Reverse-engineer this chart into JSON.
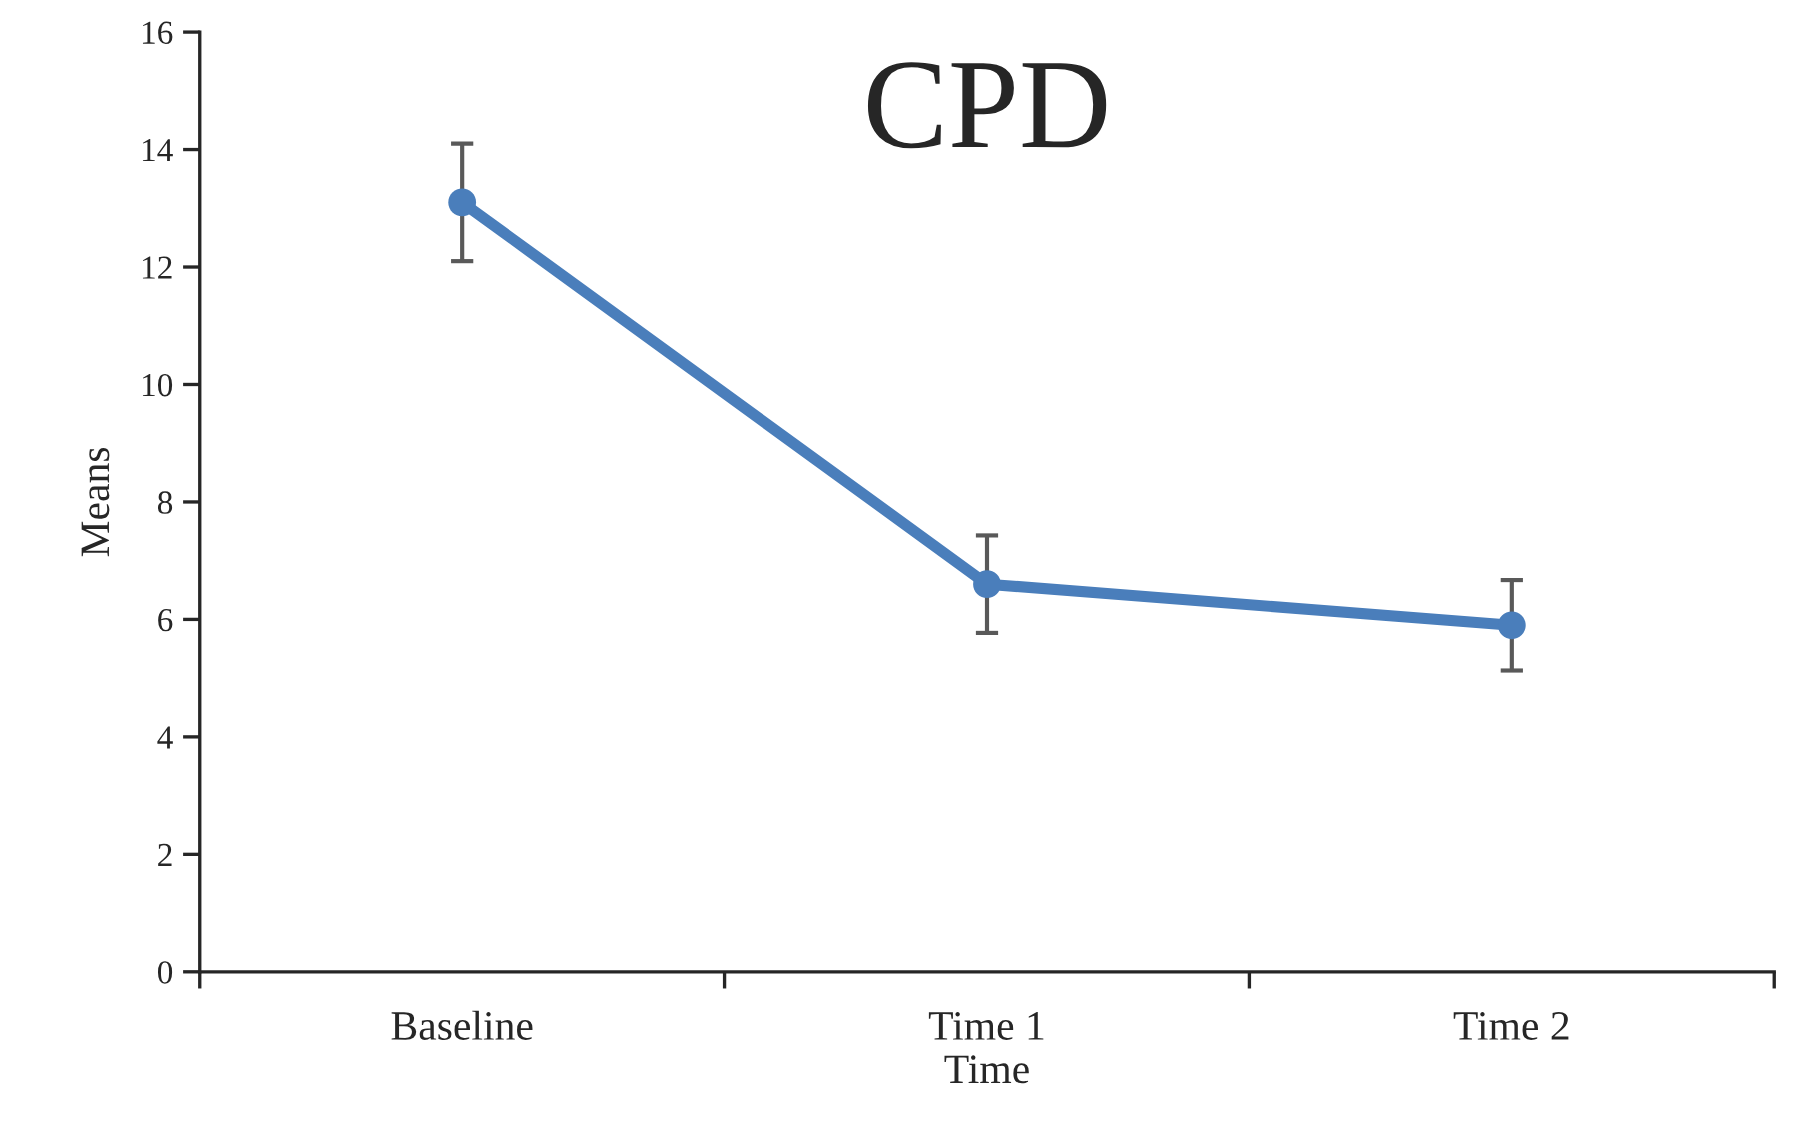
{
  "chart_data": {
    "type": "line",
    "title": "CPD",
    "xlabel": "Time",
    "ylabel": "Means",
    "categories": [
      "Baseline",
      "Time 1",
      "Time 2"
    ],
    "series": [
      {
        "color": "#4a7ebb",
        "values": [
          13.1,
          6.6,
          5.9
        ],
        "errors": [
          1.0,
          0.83,
          0.77
        ]
      }
    ],
    "ylim": [
      0,
      16
    ],
    "yticks": [
      0,
      2,
      4,
      6,
      8,
      10,
      12,
      14,
      16
    ],
    "grid": false,
    "marker": "circle",
    "line_style": "solid"
  }
}
